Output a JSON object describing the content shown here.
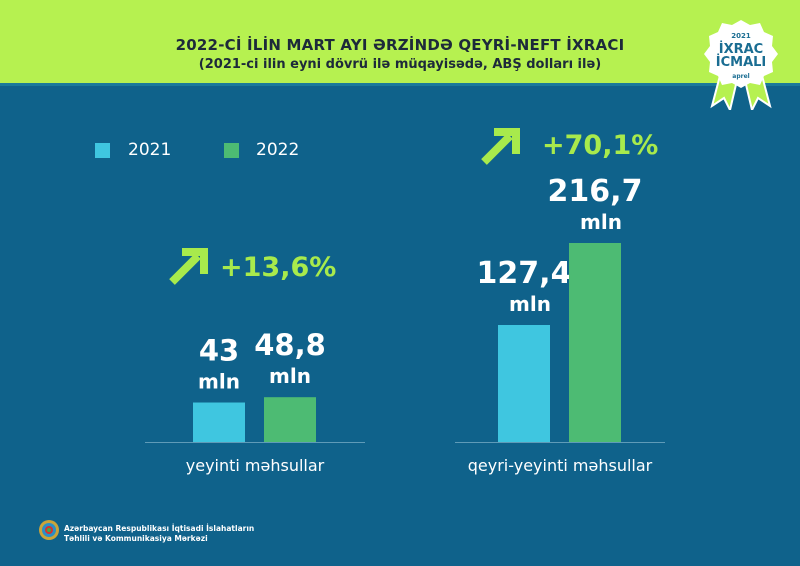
{
  "header": {
    "title": "2022-Cİ İLİN MART AYI ƏRZİNDƏ QEYRİ-NEFT İXRACI",
    "subtitle": "(2021-ci ilin eyni dövrü ilə müqayisədə, ABŞ dolları ilə)"
  },
  "badge": {
    "year": "2021",
    "line1": "İXRAC",
    "line2": "İCMALI",
    "month": "aprel"
  },
  "footer": {
    "line1": "Azərbaycan Respublikası İqtisadi İslahatların",
    "line2": "Təhlili və Kommunikasiya Mərkəzi"
  },
  "colors": {
    "background": "#0f628b",
    "header": "#b6f150",
    "series_2021": "#3fc6e0",
    "series_2022": "#4dbb73",
    "growth": "#a8ea4c"
  },
  "chart_data": {
    "type": "bar",
    "title": "2022-Cİ İLİN MART AYI ƏRZİNDƏ QEYRİ-NEFT İXRACI",
    "subtitle": "(2021-ci ilin eyni dövrü ilə müqayisədə, ABŞ dolları ilə)",
    "categories": [
      "yeyinti məhsullar",
      "qeyri-yeyinti məhsullar"
    ],
    "series": [
      {
        "name": "2021",
        "values": [
          43,
          127.4
        ],
        "labels": [
          "43",
          "127,4"
        ]
      },
      {
        "name": "2022",
        "values": [
          48.8,
          216.7
        ],
        "labels": [
          "48,8",
          "216,7"
        ]
      }
    ],
    "unit": "mln",
    "growth": [
      "+13,6%",
      "+70,1%"
    ],
    "legend": "top-left",
    "grid": false
  }
}
